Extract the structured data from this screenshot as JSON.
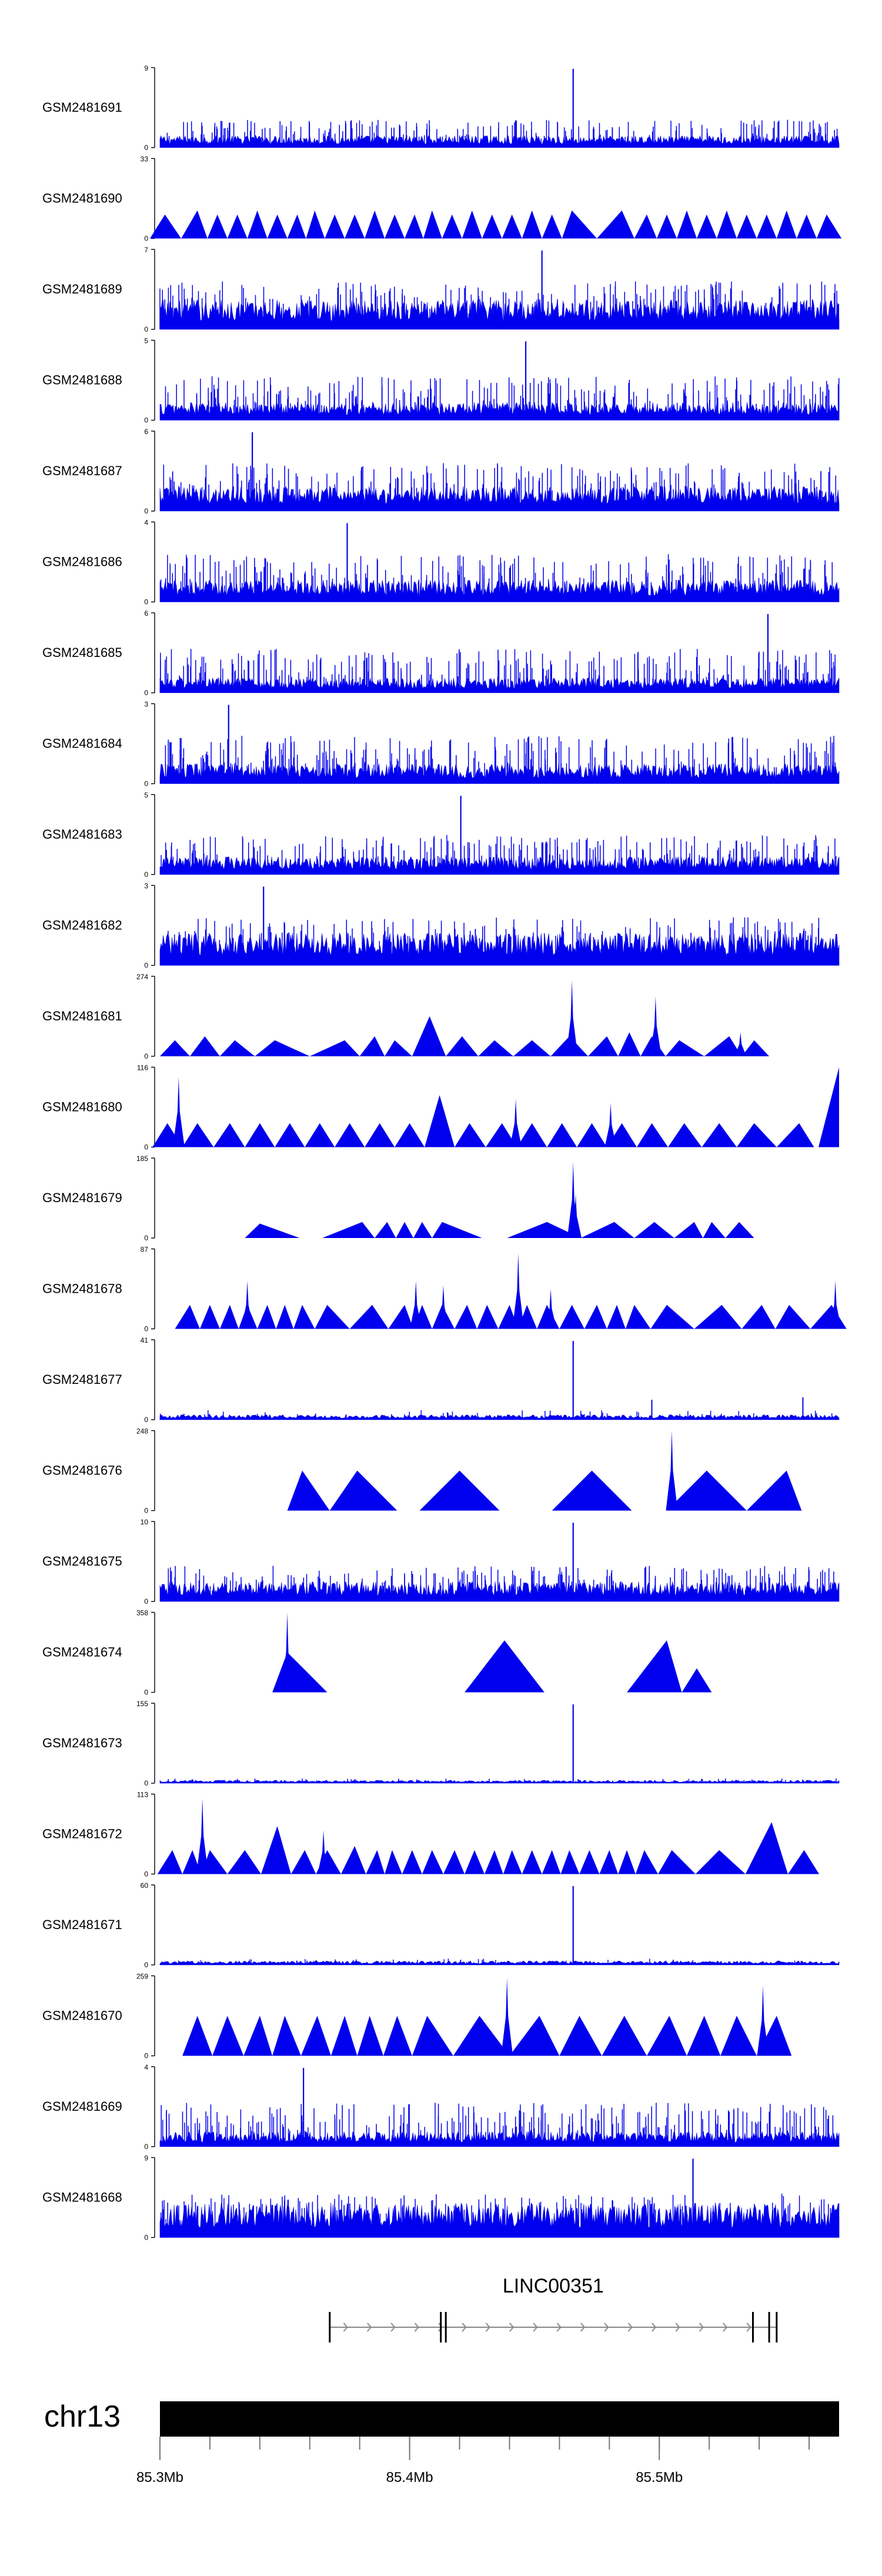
{
  "chart_data": {
    "type": "area",
    "fill_color": "#0000ee",
    "ideogram_color": "#000000",
    "chromosome": "chr13",
    "x_range": [
      85.3,
      85.572
    ],
    "x_ticks": [
      {
        "value": 85.3,
        "label": "85.3Mb"
      },
      {
        "value": 85.4,
        "label": "85.4Mb"
      },
      {
        "value": 85.5,
        "label": "85.5Mb"
      }
    ],
    "minor_tick_step": 0.02,
    "gene": {
      "name": "LINC00351",
      "strand": "+",
      "start": 85.368,
      "end": 85.547,
      "exons": [
        85.368,
        85.4125,
        85.4145,
        85.5375,
        85.544,
        85.547
      ]
    },
    "tracks": [
      {
        "name": "GSM2481691",
        "ymax": "9",
        "style": "dense",
        "level": 0.12,
        "spike_frac": 0.35,
        "peak": 85.4655
      },
      {
        "name": "GSM2481690",
        "ymax": "33",
        "style": "triangles",
        "peak_positions": [
          85.302,
          85.315,
          85.323,
          85.331,
          85.339,
          85.347,
          85.355,
          85.362,
          85.37,
          85.378,
          85.386,
          85.394,
          85.402,
          85.409,
          85.417,
          85.425,
          85.433,
          85.441,
          85.449,
          85.457,
          85.465,
          85.485,
          85.495,
          85.503,
          85.511,
          85.519,
          85.527,
          85.535,
          85.543,
          85.551,
          85.559,
          85.567
        ],
        "peak_heights": [
          0.3,
          0.35,
          0.3,
          0.3,
          0.35,
          0.3,
          0.3,
          0.35,
          0.3,
          0.3,
          0.35,
          0.3,
          0.3,
          0.35,
          0.3,
          0.35,
          0.3,
          0.3,
          0.35,
          0.3,
          0.35,
          0.35,
          0.3,
          0.3,
          0.35,
          0.3,
          0.35,
          0.3,
          0.3,
          0.35,
          0.3,
          0.3
        ]
      },
      {
        "name": "GSM2481689",
        "ymax": "7",
        "style": "dense",
        "level": 0.3,
        "spike_frac": 0.6,
        "peak": 85.453
      },
      {
        "name": "GSM2481688",
        "ymax": "5",
        "style": "dense",
        "level": 0.18,
        "spike_frac": 0.55,
        "peak": 85.4465
      },
      {
        "name": "GSM2481687",
        "ymax": "6",
        "style": "dense",
        "level": 0.25,
        "spike_frac": 0.6,
        "peak": 85.337
      },
      {
        "name": "GSM2481686",
        "ymax": "4",
        "style": "dense",
        "level": 0.22,
        "spike_frac": 0.6,
        "peak": 85.375
      },
      {
        "name": "GSM2481685",
        "ymax": "6",
        "style": "dense",
        "level": 0.15,
        "spike_frac": 0.55,
        "peak": 85.5435
      },
      {
        "name": "GSM2481684",
        "ymax": "3",
        "style": "dense",
        "level": 0.2,
        "spike_frac": 0.6,
        "peak": 85.3275
      },
      {
        "name": "GSM2481683",
        "ymax": "5",
        "style": "dense",
        "level": 0.18,
        "spike_frac": 0.5,
        "peak": 85.4205
      },
      {
        "name": "GSM2481682",
        "ymax": "3",
        "style": "dense",
        "level": 0.33,
        "spike_frac": 0.6,
        "peak": 85.3415
      },
      {
        "name": "GSM2481681",
        "ymax": "274",
        "style": "triangles",
        "peak_positions": [
          85.306,
          85.318,
          85.33,
          85.346,
          85.374,
          85.386,
          85.394,
          85.408,
          85.421,
          85.434,
          85.449,
          85.464,
          85.479,
          85.488,
          85.497,
          85.508,
          85.528,
          85.538
        ],
        "peak_heights": [
          0.2,
          0.25,
          0.2,
          0.2,
          0.2,
          0.25,
          0.2,
          0.5,
          0.25,
          0.2,
          0.2,
          0.25,
          0.25,
          0.3,
          0.25,
          0.2,
          0.25,
          0.2
        ],
        "spikes": [
          {
            "x": 85.465,
            "h": 0.95
          },
          {
            "x": 85.4985,
            "h": 0.75
          },
          {
            "x": 85.5325,
            "h": 0.3
          }
        ]
      },
      {
        "name": "GSM2481680",
        "ymax": "116",
        "style": "triangles",
        "peak_positions": [
          85.303,
          85.315,
          85.328,
          85.34,
          85.352,
          85.364,
          85.376,
          85.388,
          85.4,
          85.412,
          85.424,
          85.437,
          85.449,
          85.461,
          85.473,
          85.485,
          85.497,
          85.51,
          85.524,
          85.538,
          85.556
        ],
        "peak_heights": [
          0.3,
          0.3,
          0.3,
          0.3,
          0.3,
          0.3,
          0.3,
          0.3,
          0.3,
          0.65,
          0.3,
          0.3,
          0.3,
          0.3,
          0.3,
          0.3,
          0.3,
          0.3,
          0.3,
          0.3,
          0.3
        ],
        "spikes": [
          {
            "x": 85.3075,
            "h": 0.88
          },
          {
            "x": 85.4425,
            "h": 0.6
          },
          {
            "x": 85.4805,
            "h": 0.55
          }
        ],
        "right_ramp": true
      },
      {
        "name": "GSM2481679",
        "ymax": "185",
        "style": "triangles",
        "peak_positions": [
          85.34,
          85.381,
          85.391,
          85.398,
          85.405,
          85.413,
          85.455,
          85.482,
          85.498,
          85.514,
          85.521,
          85.532
        ],
        "peak_heights": [
          0.18,
          0.2,
          0.2,
          0.2,
          0.2,
          0.2,
          0.2,
          0.2,
          0.2,
          0.2,
          0.2,
          0.2
        ],
        "spikes": [
          {
            "x": 85.4655,
            "h": 0.95
          },
          {
            "x": 85.4665,
            "h": 0.55
          }
        ]
      },
      {
        "name": "GSM2481678",
        "ymax": "87",
        "style": "triangles",
        "peak_positions": [
          85.312,
          85.32,
          85.328,
          85.335,
          85.343,
          85.35,
          85.357,
          85.367,
          85.385,
          85.398,
          85.405,
          85.413,
          85.423,
          85.431,
          85.44,
          85.447,
          85.455,
          85.465,
          85.475,
          85.483,
          85.49,
          85.503,
          85.525,
          85.541,
          85.552,
          85.569
        ],
        "peak_heights": [
          0.3,
          0.3,
          0.3,
          0.3,
          0.3,
          0.3,
          0.3,
          0.3,
          0.3,
          0.3,
          0.3,
          0.3,
          0.3,
          0.3,
          0.3,
          0.3,
          0.3,
          0.3,
          0.3,
          0.3,
          0.3,
          0.3,
          0.3,
          0.3,
          0.3,
          0.3
        ],
        "spikes": [
          {
            "x": 85.335,
            "h": 0.6
          },
          {
            "x": 85.4025,
            "h": 0.6
          },
          {
            "x": 85.4135,
            "h": 0.55
          },
          {
            "x": 85.4435,
            "h": 0.95
          },
          {
            "x": 85.4565,
            "h": 0.5
          },
          {
            "x": 85.5705,
            "h": 0.6
          }
        ]
      },
      {
        "name": "GSM2481677",
        "ymax": "41",
        "style": "sparse",
        "level": 0.05,
        "spike_frac": 0.12,
        "peak": 85.4655,
        "extra": [
          {
            "x": 85.497,
            "h": 0.25
          },
          {
            "x": 85.5575,
            "h": 0.28
          }
        ]
      },
      {
        "name": "GSM2481676",
        "ymax": "248",
        "style": "triangles",
        "peak_positions": [
          85.357,
          85.379,
          85.42,
          85.473,
          85.519,
          85.551
        ],
        "peak_heights": [
          0.5,
          0.5,
          0.5,
          0.5,
          0.5,
          0.5
        ],
        "spikes": [
          {
            "x": 85.505,
            "h": 1.0
          }
        ]
      },
      {
        "name": "GSM2481675",
        "ymax": "10",
        "style": "dense",
        "level": 0.2,
        "spike_frac": 0.45,
        "peak": 85.4655
      },
      {
        "name": "GSM2481674",
        "ymax": "358",
        "style": "triangles",
        "peak_positions": [
          85.351,
          85.438,
          85.503,
          85.515
        ],
        "peak_heights": [
          0.5,
          0.65,
          0.65,
          0.3
        ],
        "spikes": [
          {
            "x": 85.351,
            "h": 1.0
          }
        ]
      },
      {
        "name": "GSM2481673",
        "ymax": "155",
        "style": "sparse",
        "level": 0.03,
        "spike_frac": 0.06,
        "peak": 85.4655
      },
      {
        "name": "GSM2481672",
        "ymax": "113",
        "style": "triangles",
        "peak_positions": [
          85.305,
          85.313,
          85.32,
          85.334,
          85.347,
          85.358,
          85.367,
          85.378,
          85.387,
          85.393,
          85.401,
          85.409,
          85.418,
          85.426,
          85.434,
          85.441,
          85.449,
          85.457,
          85.464,
          85.472,
          85.48,
          85.487,
          85.494,
          85.505,
          85.524,
          85.545,
          85.558
        ],
        "peak_heights": [
          0.3,
          0.3,
          0.3,
          0.3,
          0.6,
          0.3,
          0.3,
          0.35,
          0.3,
          0.3,
          0.3,
          0.3,
          0.3,
          0.3,
          0.3,
          0.3,
          0.3,
          0.3,
          0.3,
          0.3,
          0.3,
          0.3,
          0.3,
          0.3,
          0.3,
          0.65,
          0.3
        ],
        "spikes": [
          {
            "x": 85.317,
            "h": 0.95
          },
          {
            "x": 85.3655,
            "h": 0.55
          }
        ]
      },
      {
        "name": "GSM2481671",
        "ymax": "60",
        "style": "sparse",
        "level": 0.04,
        "spike_frac": 0.08,
        "peak": 85.4655
      },
      {
        "name": "GSM2481670",
        "ymax": "259",
        "style": "triangles",
        "peak_positions": [
          85.315,
          85.327,
          85.34,
          85.35,
          85.363,
          85.374,
          85.384,
          85.395,
          85.407,
          85.428,
          85.452,
          85.468,
          85.486,
          85.504,
          85.518,
          85.531,
          85.547
        ],
        "peak_heights": [
          0.5,
          0.5,
          0.5,
          0.5,
          0.5,
          0.5,
          0.5,
          0.5,
          0.5,
          0.5,
          0.5,
          0.5,
          0.5,
          0.5,
          0.5,
          0.5,
          0.5
        ],
        "spikes": [
          {
            "x": 85.439,
            "h": 0.98
          },
          {
            "x": 85.5415,
            "h": 0.88
          }
        ]
      },
      {
        "name": "GSM2481669",
        "ymax": "4",
        "style": "dense",
        "level": 0.15,
        "spike_frac": 0.55,
        "peak": 85.3575
      },
      {
        "name": "GSM2481668",
        "ymax": "9",
        "style": "dense",
        "level": 0.35,
        "spike_frac": 0.55,
        "peak": 85.5135
      }
    ]
  }
}
